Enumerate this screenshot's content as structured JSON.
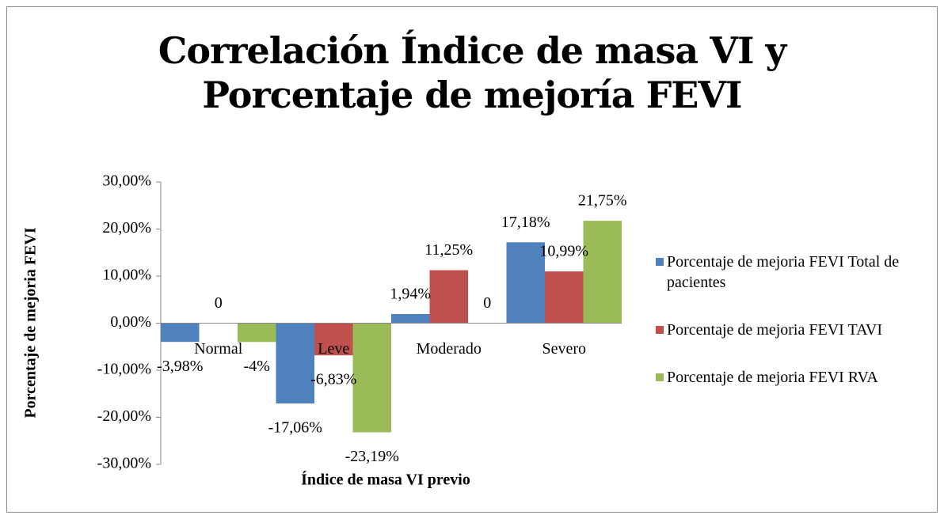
{
  "chart_data": {
    "type": "bar",
    "title": "Correlación Índice de masa VI y Porcentaje de mejoría FEVI",
    "x_label": "Índice de masa VI previo",
    "y_label": "Porcentaje de mejoria FEVI",
    "categories": [
      "Normal",
      "Leve",
      "Moderado",
      "Severo"
    ],
    "series": [
      {
        "name": "Porcentaje de mejoria FEVI Total de pacientes",
        "color": "#4f81bd",
        "values": [
          -3.98,
          -17.06,
          1.94,
          17.18
        ],
        "value_labels": [
          "-3,98%",
          "-17,06%",
          "1,94%",
          "17,18%"
        ]
      },
      {
        "name": "Porcentaje de mejoria FEVI TAVI",
        "color": "#c0504d",
        "values": [
          0,
          -6.83,
          11.25,
          10.99
        ],
        "value_labels": [
          "0",
          "-6,83%",
          "11,25%",
          "10,99%"
        ]
      },
      {
        "name": "Porcentaje de mejoria FEVI RVA",
        "color": "#9bbb59",
        "values": [
          -4,
          -23.19,
          0,
          21.75
        ],
        "value_labels": [
          "-4%",
          "-23,19%",
          "0",
          "21,75%"
        ]
      }
    ],
    "ylim": [
      -30,
      30
    ],
    "yticks": [
      {
        "value": -30,
        "label": "-30,00%"
      },
      {
        "value": -20,
        "label": "-20,00%"
      },
      {
        "value": -10,
        "label": "-10,00%"
      },
      {
        "value": 0,
        "label": "0,00%"
      },
      {
        "value": 10,
        "label": "10,00%"
      },
      {
        "value": 20,
        "label": "20,00%"
      },
      {
        "value": 30,
        "label": "30,00%"
      }
    ],
    "legend": "right"
  }
}
